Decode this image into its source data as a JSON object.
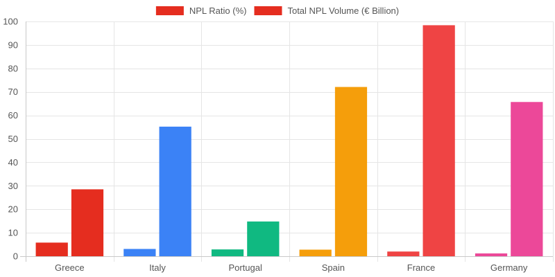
{
  "chart_data": {
    "type": "bar",
    "title": "",
    "xlabel": "",
    "ylabel": "",
    "ylim": [
      0,
      100
    ],
    "yticks": [
      0,
      10,
      20,
      30,
      40,
      50,
      60,
      70,
      80,
      90,
      100
    ],
    "grid": true,
    "legend_position": "top-center",
    "categories": [
      "Greece",
      "Italy",
      "Portugal",
      "Spain",
      "France",
      "Germany"
    ],
    "category_colors": [
      "#e52d1f",
      "#3b82f6",
      "#10b981",
      "#f59e0b",
      "#ef4444",
      "#ec4899"
    ],
    "series": [
      {
        "name": "NPL Ratio (%)",
        "legend_color": "#e52d1f",
        "values": [
          5.8,
          3.1,
          2.9,
          2.8,
          2.0,
          1.2
        ]
      },
      {
        "name": "Total NPL Volume (€ Billion)",
        "legend_color": "#e52d1f",
        "values": [
          28.5,
          55.2,
          14.8,
          72.1,
          98.4,
          65.7
        ]
      }
    ]
  }
}
